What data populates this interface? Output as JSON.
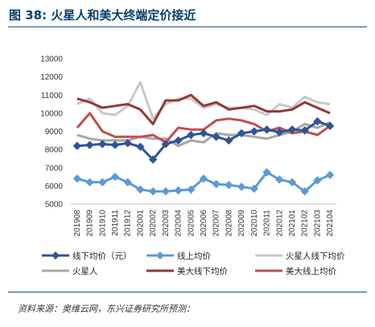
{
  "title": "图 38: 火星人和美大终端定价接近",
  "source": "资料来源：奥维云网，东兴证券研究所预测：",
  "chart_data": {
    "type": "line",
    "categories": [
      "201908",
      "201909",
      "201910",
      "201911",
      "201912",
      "202001",
      "202002",
      "202003",
      "202004",
      "202005",
      "202006",
      "202007",
      "202008",
      "202009",
      "202010",
      "202011",
      "202012",
      "202101",
      "202102",
      "202103",
      "202104"
    ],
    "ylim": [
      5000,
      13000
    ],
    "yticks": [
      5000,
      6000,
      7000,
      8000,
      9000,
      10000,
      11000,
      12000,
      13000
    ],
    "grid": false,
    "legend_position": "bottom",
    "series": [
      {
        "name": "线下均价（元）",
        "color": "#2f5597",
        "marker": "diamond",
        "values": [
          8200,
          8250,
          8300,
          8250,
          8350,
          8150,
          7450,
          8300,
          8500,
          8800,
          8900,
          8700,
          8500,
          8900,
          9000,
          9100,
          8950,
          9100,
          9050,
          9550,
          9300
        ]
      },
      {
        "name": "线上均价",
        "color": "#5b9bd5",
        "marker": "diamond",
        "values": [
          6400,
          6200,
          6200,
          6500,
          6200,
          5800,
          5700,
          5700,
          5750,
          5800,
          6400,
          6100,
          6050,
          5950,
          5850,
          6750,
          6350,
          6200,
          5700,
          6300,
          6600
        ]
      },
      {
        "name": "火星人线下均价",
        "color": "#c8c8c8",
        "values": [
          10500,
          10800,
          10000,
          9900,
          10400,
          11700,
          9700,
          10500,
          10800,
          10800,
          10300,
          10500,
          10300,
          10300,
          10200,
          9900,
          10500,
          10300,
          10900,
          10600,
          10500
        ]
      },
      {
        "name": "火星人",
        "color": "#a6a6a6",
        "values": [
          8800,
          8600,
          8500,
          8500,
          8500,
          8700,
          8600,
          8600,
          8200,
          8500,
          8400,
          8900,
          8800,
          8800,
          8700,
          8600,
          8800,
          9000,
          9400,
          9200,
          9500
        ]
      },
      {
        "name": "美大线下均价",
        "color": "#953734",
        "values": [
          10800,
          10600,
          10300,
          10400,
          10500,
          10200,
          9400,
          10700,
          10700,
          11000,
          10400,
          10600,
          10200,
          10300,
          10400,
          10100,
          10100,
          10200,
          10600,
          10300,
          10000
        ]
      },
      {
        "name": "美大线上均价",
        "color": "#c0504d",
        "values": [
          9200,
          10000,
          9000,
          8700,
          8700,
          8700,
          8800,
          8400,
          9200,
          9100,
          9100,
          9600,
          9700,
          9600,
          9400,
          9000,
          9200,
          8900,
          9000,
          8800,
          9300
        ]
      }
    ]
  }
}
